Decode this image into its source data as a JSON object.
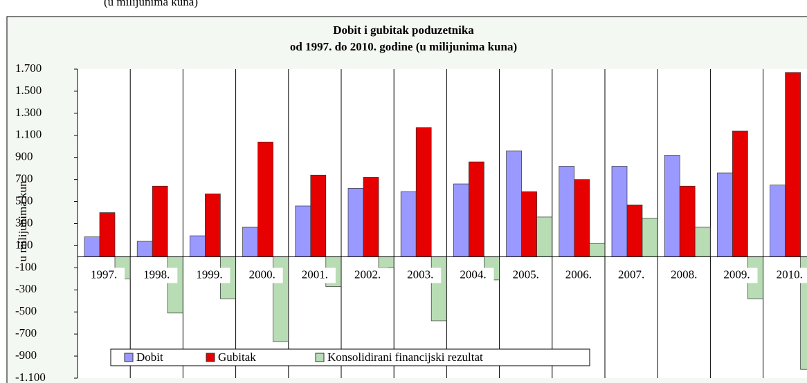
{
  "caption": "(u milijunima kuna)",
  "chart_data": {
    "type": "bar",
    "title": [
      "Dobit i gubitak poduzetnika",
      "od 1997. do 2010. godine (u milijunima kuna)"
    ],
    "y_label": "u milijunima kun",
    "categories": [
      "1997.",
      "1998.",
      "1999.",
      "2000.",
      "2001.",
      "2002.",
      "2003.",
      "2004.",
      "2005.",
      "2006.",
      "2007.",
      "2008.",
      "2009.",
      "2010."
    ],
    "series": [
      {
        "name": "Dobit",
        "color": "#9999ff",
        "values": [
          180,
          140,
          190,
          270,
          460,
          620,
          590,
          660,
          960,
          820,
          820,
          920,
          760,
          650
        ]
      },
      {
        "name": "Gubitak",
        "color": "#e60000",
        "values": [
          400,
          640,
          570,
          1040,
          740,
          720,
          1170,
          860,
          590,
          700,
          470,
          640,
          1140,
          1670
        ]
      },
      {
        "name": "Konsolidirani financijski rezultat",
        "color": "#b8dcb4",
        "values": [
          -200,
          -510,
          -380,
          -770,
          -270,
          -100,
          -580,
          -210,
          360,
          120,
          350,
          270,
          -380,
          -1020
        ]
      }
    ],
    "ylim": [
      -1100,
      1700
    ],
    "yticks": [
      {
        "value": 1700,
        "label": "1.700"
      },
      {
        "value": 1500,
        "label": "1.500"
      },
      {
        "value": 1300,
        "label": "1.300"
      },
      {
        "value": 1100,
        "label": "1.100"
      },
      900,
      700,
      500,
      300,
      100,
      -100,
      -300,
      -500,
      -700,
      -900,
      {
        "value": -1100,
        "label": "-1.100"
      }
    ],
    "grid": "vertical",
    "legend": "bottom"
  }
}
